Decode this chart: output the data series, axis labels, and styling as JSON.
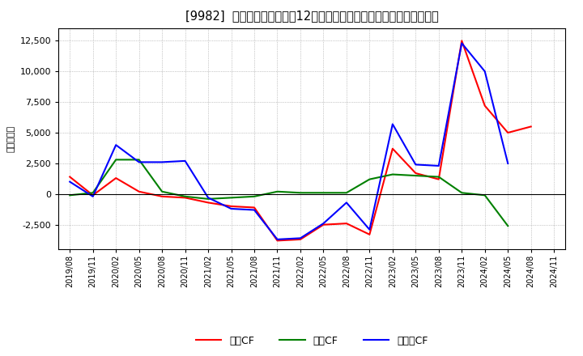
{
  "title": "[9982]  キャッシュフローの12か月移動合計の対前年同期増減額の推移",
  "ylabel": "（百万円）",
  "background_color": "#ffffff",
  "plot_bg_color": "#ffffff",
  "grid_color": "#999999",
  "x_labels": [
    "2019/08",
    "2019/11",
    "2020/02",
    "2020/05",
    "2020/08",
    "2020/11",
    "2021/02",
    "2021/05",
    "2021/08",
    "2021/11",
    "2022/02",
    "2022/05",
    "2022/08",
    "2022/11",
    "2023/02",
    "2023/05",
    "2023/08",
    "2023/11",
    "2024/02",
    "2024/05",
    "2024/08",
    "2024/11"
  ],
  "operating_cf": [
    1400,
    -100,
    1300,
    200,
    -200,
    -300,
    -700,
    -1000,
    -1100,
    -3800,
    -3700,
    -2500,
    -2400,
    -3300,
    3700,
    1700,
    1200,
    12500,
    7200,
    5000,
    5500,
    null
  ],
  "investing_cf": [
    -100,
    100,
    2800,
    2800,
    200,
    -200,
    -400,
    -300,
    -200,
    200,
    100,
    100,
    100,
    1200,
    1600,
    1500,
    1400,
    100,
    -100,
    -2600,
    null,
    null
  ],
  "free_cf": [
    1000,
    -200,
    4000,
    2600,
    2600,
    2700,
    -300,
    -1200,
    -1300,
    -3700,
    -3600,
    -2400,
    -700,
    -2900,
    5700,
    2400,
    2300,
    12300,
    10000,
    2500,
    null,
    null
  ],
  "operating_color": "#ff0000",
  "investing_color": "#008000",
  "free_color": "#0000ff",
  "legend_operating": "営業CF",
  "legend_investing": "投資CF",
  "legend_free": "フリーCF",
  "ylim": [
    -4500,
    13500
  ],
  "yticks": [
    -2500,
    0,
    2500,
    5000,
    7500,
    10000,
    12500
  ]
}
